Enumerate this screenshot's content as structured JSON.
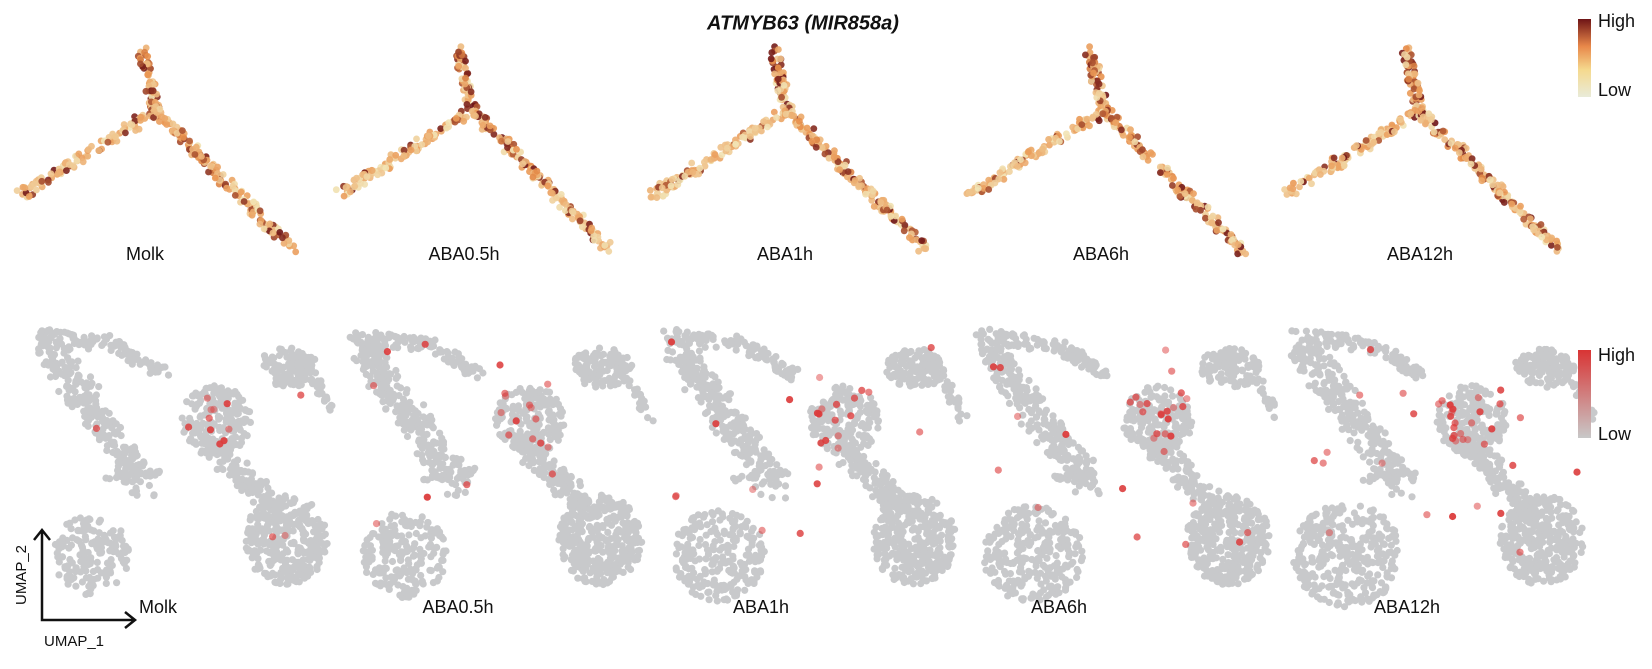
{
  "title": "ATMYB63 (MIR858a)",
  "trajectory_panels": [
    {
      "label": "Molk"
    },
    {
      "label": "ABA0.5h"
    },
    {
      "label": "ABA1h"
    },
    {
      "label": "ABA6h"
    },
    {
      "label": "ABA12h"
    }
  ],
  "umap_panels": [
    {
      "label": "Molk"
    },
    {
      "label": "ABA0.5h"
    },
    {
      "label": "ABA1h"
    },
    {
      "label": "ABA6h"
    },
    {
      "label": "ABA12h"
    }
  ],
  "trajectory_legend": {
    "high": "High",
    "low": "Low"
  },
  "umap_legend": {
    "high": "High",
    "low": "Low"
  },
  "axes": {
    "x": "UMAP_1",
    "y": "UMAP_2"
  }
}
